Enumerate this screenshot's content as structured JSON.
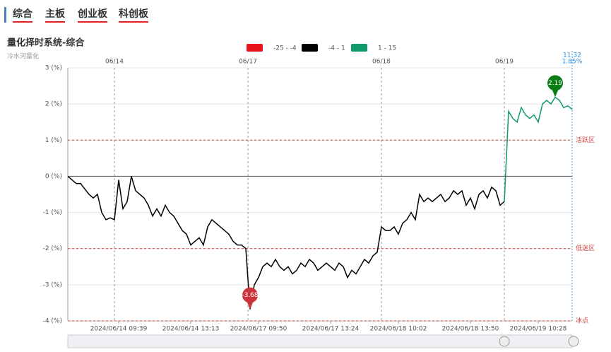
{
  "tabs": [
    "综合",
    "主板",
    "创业板",
    "科创板"
  ],
  "chart_data": {
    "type": "line",
    "title": "量化择时系统-综合",
    "subtitle": "冷水河量化",
    "ranges": [
      {
        "name": "-25 - -4",
        "min": -25,
        "max": -4,
        "color": "#e8141b"
      },
      {
        "name": "-4 - 1",
        "min": -4,
        "max": 1,
        "color": "#000000"
      },
      {
        "name": "1 - 15",
        "min": 1,
        "max": 15,
        "color": "#0e9a6a"
      }
    ],
    "series": [
      {
        "values": [
          0,
          -0.1,
          -0.2,
          -0.2,
          -0.35,
          -0.5,
          -0.6,
          -0.5,
          -1.0,
          -1.2,
          -1.15,
          -1.2,
          -0.1,
          -0.9,
          -0.7,
          0.0,
          -0.4,
          -0.5,
          -0.6,
          -0.8,
          -1.1,
          -0.9,
          -1.1,
          -0.8,
          -1.0,
          -1.1,
          -1.3,
          -1.5,
          -1.6,
          -1.9,
          -1.8,
          -1.7,
          -1.9,
          -1.4,
          -1.2,
          -1.3,
          -1.4,
          -1.5,
          -1.6,
          -1.8,
          -1.9,
          -1.9,
          -2.0,
          -3.68,
          -3.0,
          -2.8,
          -2.5,
          -2.4,
          -2.5,
          -2.3,
          -2.5,
          -2.6,
          -2.5,
          -2.7,
          -2.6,
          -2.4,
          -2.5,
          -2.3,
          -2.4,
          -2.6,
          -2.5,
          -2.4,
          -2.5,
          -2.6,
          -2.4,
          -2.5,
          -2.8,
          -2.6,
          -2.7,
          -2.5,
          -2.3,
          -2.4,
          -2.2,
          -2.1,
          -1.4,
          -1.5,
          -1.5,
          -1.4,
          -1.6,
          -1.3,
          -1.2,
          -1.0,
          -1.2,
          -0.5,
          -0.7,
          -0.6,
          -0.7,
          -0.6,
          -0.5,
          -0.7,
          -0.6,
          -0.4,
          -0.5,
          -0.4,
          -0.8,
          -0.6,
          -0.9,
          -0.5,
          -0.4,
          -0.6,
          -0.3,
          -0.4,
          -0.8,
          -0.7,
          1.8,
          1.6,
          1.5,
          1.9,
          1.7,
          1.6,
          1.7,
          1.5,
          2.0,
          2.1,
          2.0,
          2.19,
          2.1,
          1.9,
          1.95,
          1.85
        ]
      }
    ],
    "pins": [
      {
        "index": 43,
        "value": -3.68,
        "color": "#c9353a"
      },
      {
        "index": 115,
        "value": 2.19,
        "color": "#0a7d14"
      }
    ],
    "last_time": "11:32",
    "last_value_label": "1.85%",
    "xlim": [
      0,
      119
    ],
    "xticks": [
      {
        "value": 12,
        "label": "2024/06/14 09:39"
      },
      {
        "value": 29,
        "label": "2024/06/14 13:13"
      },
      {
        "value": 45,
        "label": "2024/06/17 09:50"
      },
      {
        "value": 62,
        "label": "2024/06/17 13:24"
      },
      {
        "value": 78,
        "label": "2024/06/18 10:02"
      },
      {
        "value": 95,
        "label": "2024/06/18 13:50"
      },
      {
        "value": 111,
        "label": "2024/06/19 10:28"
      }
    ],
    "day_ticks": [
      {
        "value": 11,
        "label": "06/14"
      },
      {
        "value": 42.5,
        "label": "06/17"
      },
      {
        "value": 74,
        "label": "06/18"
      },
      {
        "value": 103,
        "label": "06/19"
      }
    ],
    "ylim": [
      -4,
      3
    ],
    "yticks": [
      {
        "value": 3,
        "label": "3 (%)"
      },
      {
        "value": 2,
        "label": "2 (%)"
      },
      {
        "value": 1,
        "label": "1 (%)"
      },
      {
        "value": 0,
        "label": "0 (%)"
      },
      {
        "value": -1,
        "label": "-1 (%)"
      },
      {
        "value": -2,
        "label": "-2 (%)"
      },
      {
        "value": -3,
        "label": "-3 (%)"
      },
      {
        "value": -4,
        "label": "-4 (%)"
      }
    ],
    "zones": [
      {
        "value": 1,
        "label": "活跃区"
      },
      {
        "value": -2,
        "label": "低迷区"
      },
      {
        "value": -4,
        "label": "冰点"
      }
    ],
    "grid": true
  }
}
